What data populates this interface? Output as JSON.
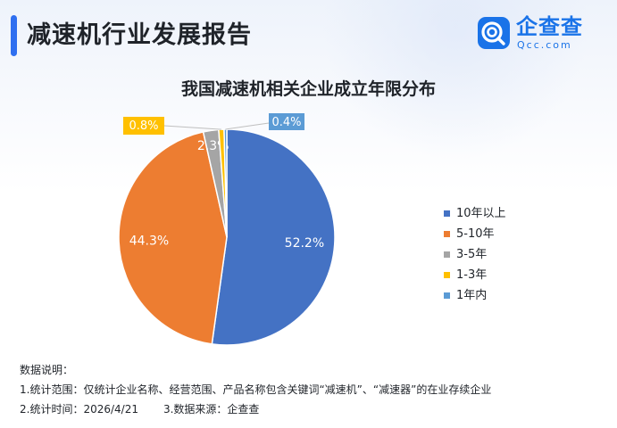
{
  "header": {
    "title": "减速机行业发展报告",
    "logo_name": "企查查",
    "logo_domain": "Qcc.com",
    "logo_icon": "qcc-logo-icon"
  },
  "colors": {
    "accent": "#2f6ff0",
    "brand": "#1a73e8"
  },
  "chart_data": {
    "type": "pie",
    "title": "我国减速机相关企业成立年限分布",
    "legend_position": "right",
    "start_angle_deg": 0,
    "direction": "clockwise",
    "slices": [
      {
        "name": "10年以上",
        "value": 52.2,
        "label": "52.2%",
        "color": "#4472c4"
      },
      {
        "name": "5-10年",
        "value": 44.3,
        "label": "44.3%",
        "color": "#ed7d31"
      },
      {
        "name": "3-5年",
        "value": 2.3,
        "label": "2.3%",
        "color": "#a5a5a5"
      },
      {
        "name": "1-3年",
        "value": 0.8,
        "label": "0.8%",
        "color": "#ffc000"
      },
      {
        "name": "1年内",
        "value": 0.4,
        "label": "0.4%",
        "color": "#5b9bd5"
      }
    ]
  },
  "notes": {
    "heading": "数据说明：",
    "line1": "1.统计范围：仅统计企业名称、经营范围、产品名称包含关键词“减速机”、“减速器”的在业存续企业",
    "line2a": "2.统计时间：2026/4/21",
    "line2b": "3.数据来源：企查查"
  }
}
